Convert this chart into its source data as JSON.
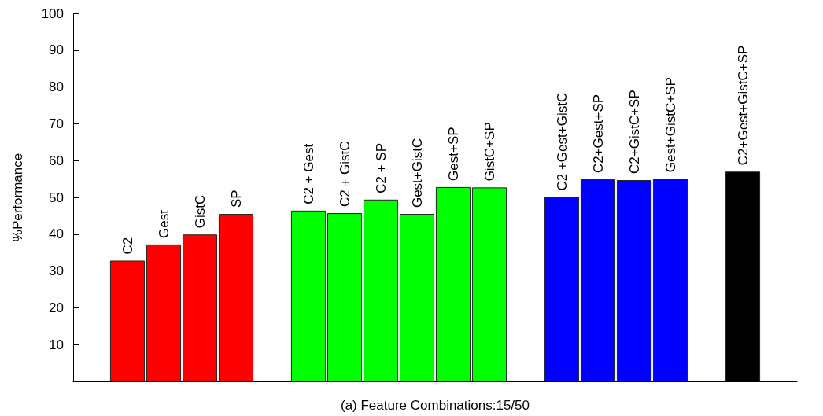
{
  "chart_data": {
    "type": "bar",
    "xlabel": "(a) Feature Combinations:15/50",
    "ylabel": "%Performance",
    "categories": [
      null,
      "C2",
      "Gest",
      "GistC",
      "SP",
      null,
      "C2 + Gest",
      "C2 + GistC",
      "C2 + SP",
      "Gest+GistC",
      "Gest+SP",
      "GistC+SP",
      null,
      "C2 +Gest+GistC",
      "C2+Gest+SP",
      "C2+GistC+SP",
      "Gest+GistC+SP",
      null,
      "C2+Gest+GistC+SP",
      null
    ],
    "values": [
      null,
      32.8,
      37.2,
      39.9,
      45.5,
      null,
      46.4,
      45.7,
      49.4,
      45.5,
      52.8,
      52.7,
      null,
      50.1,
      54.9,
      54.7,
      55.1,
      null,
      57.0,
      null
    ],
    "colors": [
      null,
      "#ff0000",
      "#ff0000",
      "#ff0000",
      "#ff0000",
      null,
      "#00ff00",
      "#00ff00",
      "#00ff00",
      "#00ff00",
      "#00ff00",
      "#00ff00",
      null,
      "#0000ff",
      "#0000ff",
      "#0000ff",
      "#0000ff",
      null,
      "#000000",
      null
    ],
    "ylim": [
      0,
      100
    ],
    "yticks": [
      10,
      20,
      30,
      40,
      50,
      60,
      70,
      80,
      90,
      100
    ],
    "grid": false,
    "tick_labels": "y"
  }
}
